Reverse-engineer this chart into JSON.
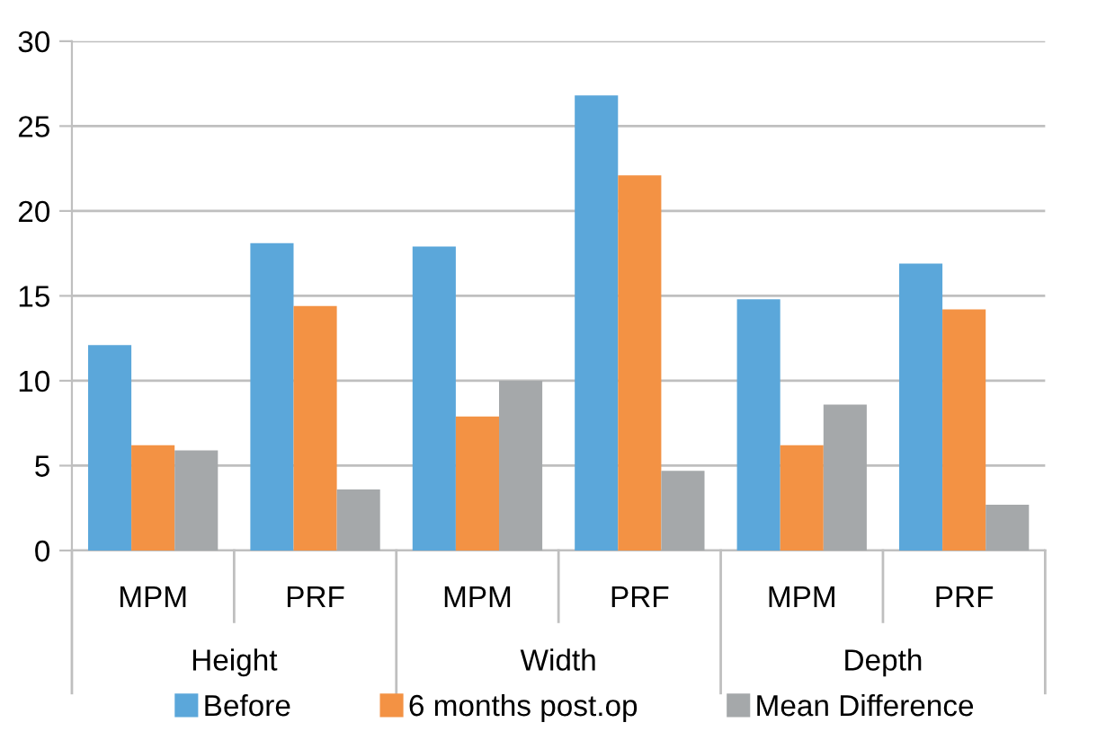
{
  "chart_data": {
    "type": "bar",
    "categories": [
      "MPM",
      "PRF",
      "MPM",
      "PRF",
      "MPM",
      "PRF"
    ],
    "series": [
      {
        "name": "Before",
        "color": "#5ba7da",
        "values": [
          12.1,
          18.1,
          17.9,
          26.8,
          14.8,
          16.9
        ]
      },
      {
        "name": "6 months post.op",
        "color": "#f39244",
        "values": [
          6.2,
          14.4,
          7.9,
          22.1,
          6.2,
          14.2
        ]
      },
      {
        "name": "Mean Difference",
        "color": "#a5a8aa",
        "values": [
          5.9,
          3.6,
          10.0,
          4.7,
          8.6,
          2.7
        ]
      }
    ],
    "annotations": [
      "Height",
      "Width",
      "Depth"
    ],
    "ylim": [
      0,
      30
    ],
    "yticks": [
      0,
      5,
      10,
      15,
      20,
      25,
      30
    ],
    "grid": "y",
    "legend": "bottom"
  }
}
